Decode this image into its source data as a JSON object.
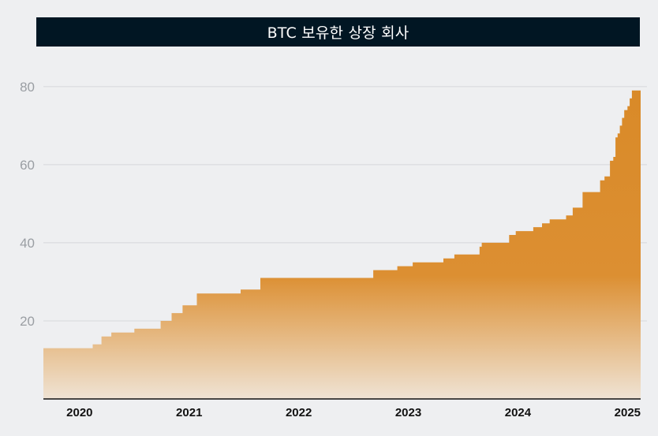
{
  "chart_data": {
    "type": "area",
    "title": "BTC 보유한 상장 회사",
    "xlabel": "",
    "ylabel": "",
    "x_tick_labels": [
      "2020",
      "2021",
      "2022",
      "2023",
      "2024",
      "2025"
    ],
    "y_ticks": [
      20,
      40,
      60,
      80
    ],
    "ylim": [
      0,
      83
    ],
    "xlim": [
      2019.8,
      2025.25
    ],
    "grid": "horizontal",
    "legend": "none",
    "colors": {
      "fill_top": "#d98a28",
      "fill_bottom": "#efe3d4",
      "title_bg": "#011623",
      "baseline": "#111111",
      "grid": "#d6d8db"
    },
    "series": [
      {
        "step": true,
        "x": [
          2019.8,
          2020.1,
          2020.25,
          2020.33,
          2020.42,
          2020.63,
          2020.87,
          2020.97,
          2021.07,
          2021.2,
          2021.47,
          2021.6,
          2021.78,
          2022.8,
          2022.81,
          2023.03,
          2023.17,
          2023.45,
          2023.55,
          2023.78,
          2023.8,
          2024.05,
          2024.11,
          2024.27,
          2024.35,
          2024.42,
          2024.57,
          2024.63,
          2024.72,
          2024.88,
          2024.92,
          2024.97,
          2025.0,
          2025.02,
          2025.04,
          2025.06,
          2025.08,
          2025.1,
          2025.13,
          2025.15,
          2025.17,
          2025.25
        ],
        "y": [
          13,
          13,
          14,
          16,
          17,
          18,
          20,
          22,
          24,
          27,
          27,
          28,
          31,
          31,
          33,
          34,
          35,
          36,
          37,
          39,
          40,
          42,
          43,
          44,
          45,
          46,
          47,
          49,
          53,
          56,
          57,
          61,
          62,
          67,
          68,
          70,
          72,
          74,
          75,
          77,
          79,
          79
        ]
      }
    ]
  }
}
